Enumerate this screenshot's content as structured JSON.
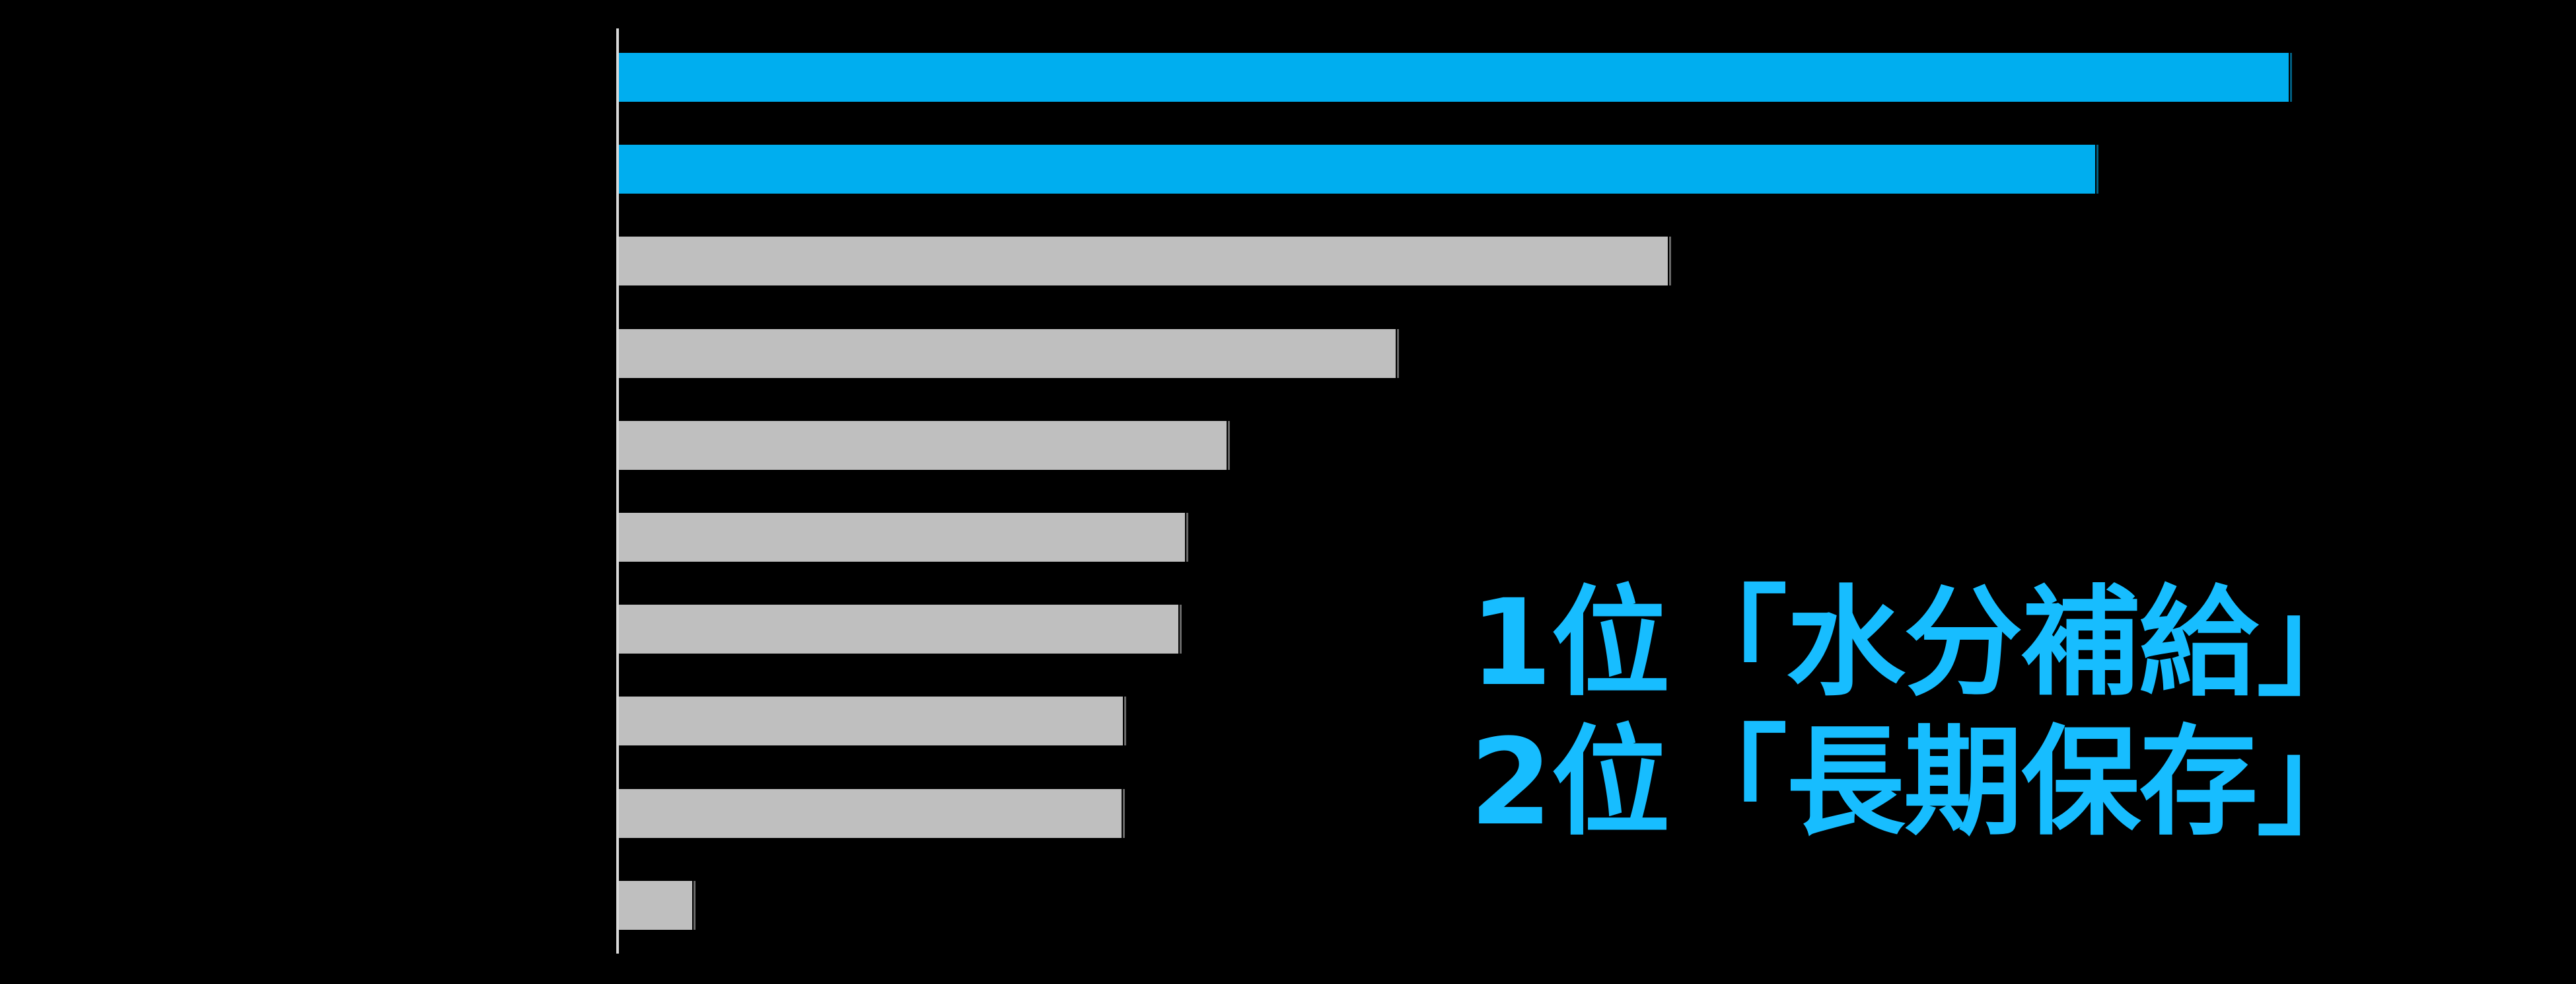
{
  "page": {
    "background_color": "#000000"
  },
  "chart_data": {
    "type": "bar",
    "orientation": "horizontal",
    "title": "",
    "categories": [
      "水分補給",
      "長期保存",
      "",
      "",
      "",
      "",
      "",
      "",
      "",
      ""
    ],
    "values": [
      100,
      88.4,
      62.8,
      46.5,
      36.4,
      33.9,
      33.5,
      30.2,
      30.1,
      4.4
    ],
    "units": "relative length, longest bar = 100 (axis unlabeled)",
    "xlim": [
      0,
      117
    ],
    "grid": false,
    "legend": false,
    "x_axis": {
      "visible": false,
      "tick_labels": []
    },
    "y_axis": {
      "visible": true,
      "line_color": "#D9D9D9",
      "category_labels_visible": false
    },
    "bar_colors": [
      "#00AEEF",
      "#00AEEF",
      "#BFBFBF",
      "#BFBFBF",
      "#BFBFBF",
      "#BFBFBF",
      "#BFBFBF",
      "#BFBFBF",
      "#BFBFBF",
      "#BFBFBF"
    ],
    "colors": {
      "highlight": "#00AEEF",
      "default": "#BFBFBF",
      "annotation_text": "#17BDFF",
      "background": "#000000"
    },
    "annotation": {
      "line1": "1位「水分補給」",
      "line2": "2位「長期保存」",
      "color": "#17BDFF"
    }
  }
}
